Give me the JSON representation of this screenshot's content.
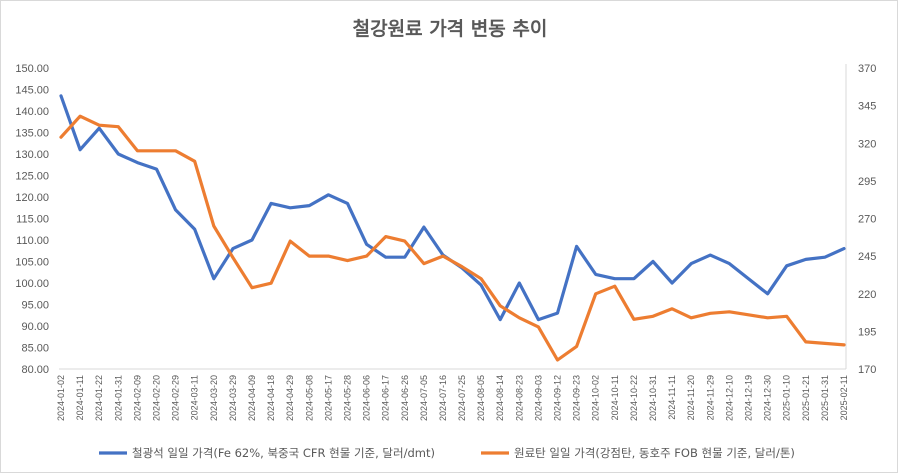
{
  "chart_data": {
    "type": "line",
    "title": "철강원료 가격 변동 추이",
    "x": [
      "2024-01-02",
      "2024-01-11",
      "2024-01-22",
      "2024-01-31",
      "2024-02-09",
      "2024-02-20",
      "2024-02-29",
      "2024-03-11",
      "2024-03-20",
      "2024-03-29",
      "2024-04-09",
      "2024-04-18",
      "2024-04-29",
      "2024-05-08",
      "2024-05-17",
      "2024-05-28",
      "2024-06-06",
      "2024-06-17",
      "2024-06-26",
      "2024-07-05",
      "2024-07-16",
      "2024-07-25",
      "2024-08-05",
      "2024-08-14",
      "2024-08-23",
      "2024-09-03",
      "2024-09-12",
      "2024-09-23",
      "2024-10-02",
      "2024-10-11",
      "2024-10-22",
      "2024-10-31",
      "2024-11-11",
      "2024-11-20",
      "2024-11-29",
      "2024-12-10",
      "2024-12-19",
      "2024-12-30",
      "2025-01-10",
      "2025-01-21",
      "2025-01-31",
      "2025-02-11"
    ],
    "y_left": {
      "min": 80,
      "max": 150,
      "step": 5,
      "ticks": [
        "80.00",
        "85.00",
        "90.00",
        "95.00",
        "100.00",
        "105.00",
        "110.00",
        "115.00",
        "120.00",
        "125.00",
        "130.00",
        "135.00",
        "140.00",
        "145.00",
        "150.00"
      ]
    },
    "y_right": {
      "min": 170,
      "max": 370,
      "ticks": [
        "170",
        "195",
        "220",
        "245",
        "270",
        "295",
        "320",
        "345",
        "370"
      ]
    },
    "grid": false,
    "legend_position": "bottom",
    "series": [
      {
        "name": "철광석 일일 가격(Fe 62%, 북중국 CFR 현물 기준, 달러/dmt)",
        "axis": "left",
        "color": "#4472c4",
        "values": [
          143.5,
          131.0,
          136.0,
          130.0,
          128.0,
          126.5,
          117.0,
          112.5,
          101.0,
          108.0,
          110.0,
          118.5,
          117.5,
          118.0,
          120.5,
          118.5,
          109.0,
          106.0,
          106.0,
          113.0,
          106.5,
          103.5,
          99.5,
          91.5,
          100.0,
          91.5,
          93.0,
          108.5,
          102.0,
          101.0,
          101.0,
          105.0,
          100.0,
          104.5,
          106.5,
          104.5,
          101.0,
          97.5,
          104.0,
          105.5,
          106.0,
          108.0
        ]
      },
      {
        "name": "원료탄 일일 가격(강점탄, 동호주 FOB 현물 기준, 달러/톤)",
        "axis": "right",
        "color": "#ed7d31",
        "values": [
          324,
          338,
          332,
          331,
          315,
          315,
          315,
          308,
          265,
          244,
          224,
          227,
          255,
          245,
          245,
          242,
          245,
          258,
          255,
          240,
          245,
          238,
          230,
          212,
          204,
          198,
          176,
          185,
          220,
          225,
          203,
          205,
          210,
          204,
          207,
          208,
          206,
          204,
          205,
          188,
          187,
          186
        ]
      }
    ]
  }
}
